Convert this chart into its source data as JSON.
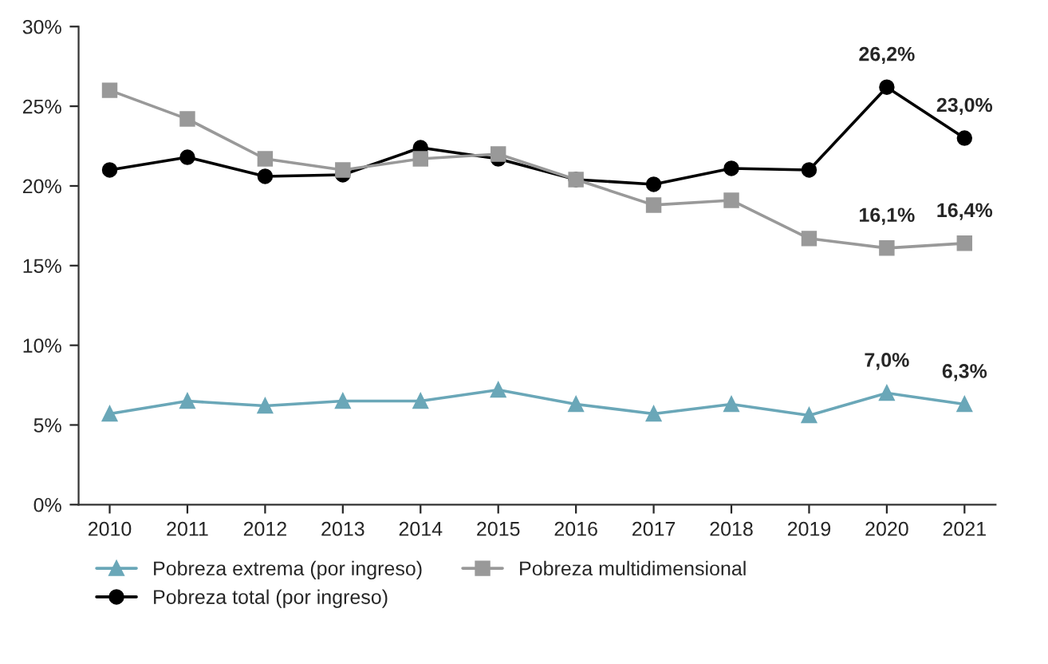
{
  "chart_data": {
    "type": "line",
    "categories": [
      "2010",
      "2011",
      "2012",
      "2013",
      "2014",
      "2015",
      "2016",
      "2017",
      "2018",
      "2019",
      "2020",
      "2021"
    ],
    "series": [
      {
        "name": "Pobreza extrema (por ingreso)",
        "color": "#6aa7b8",
        "marker": "triangle",
        "values": [
          5.7,
          6.5,
          6.2,
          6.5,
          6.5,
          7.2,
          6.3,
          5.7,
          6.3,
          5.6,
          7.0,
          6.3
        ],
        "value_labels": [
          null,
          null,
          null,
          null,
          null,
          null,
          null,
          null,
          null,
          null,
          "7,0%",
          "6,3%"
        ]
      },
      {
        "name": "Pobreza total (por ingreso)",
        "color": "#000000",
        "marker": "circle",
        "values": [
          21.0,
          21.8,
          20.6,
          20.7,
          22.4,
          21.7,
          20.4,
          20.1,
          21.1,
          21.0,
          26.2,
          23.0
        ],
        "value_labels": [
          null,
          null,
          null,
          null,
          null,
          null,
          null,
          null,
          null,
          null,
          "26,2%",
          "23,0%"
        ]
      },
      {
        "name": "Pobreza multidimensional",
        "color": "#999999",
        "marker": "square",
        "values": [
          26.0,
          24.2,
          21.7,
          21.0,
          21.7,
          22.0,
          20.4,
          18.8,
          19.1,
          16.7,
          16.1,
          16.4
        ],
        "value_labels": [
          null,
          null,
          null,
          null,
          null,
          null,
          null,
          null,
          null,
          null,
          "16,1%",
          "16,4%"
        ]
      }
    ],
    "ylim": [
      0,
      30
    ],
    "yticks": [
      {
        "value": 0,
        "label": "0%"
      },
      {
        "value": 5,
        "label": "5%"
      },
      {
        "value": 10,
        "label": "10%"
      },
      {
        "value": 15,
        "label": "15%"
      },
      {
        "value": 20,
        "label": "20%"
      },
      {
        "value": 25,
        "label": "25%"
      },
      {
        "value": 30,
        "label": "30%"
      }
    ],
    "grid": false,
    "legend": "bottom",
    "line_style": "solid"
  }
}
